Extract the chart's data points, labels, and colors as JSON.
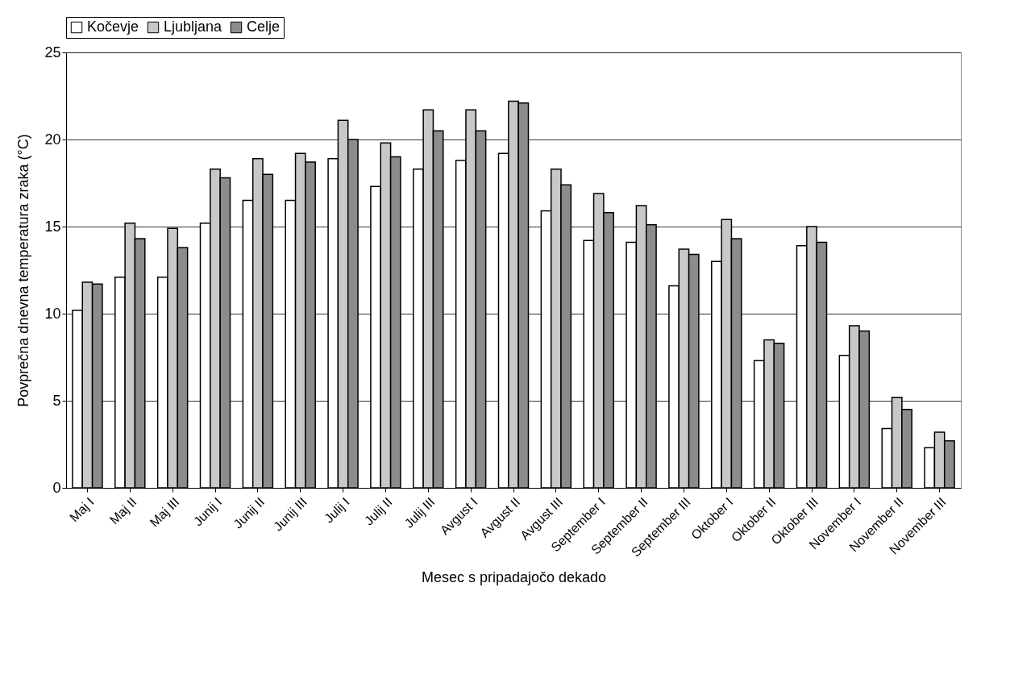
{
  "chart_data": {
    "type": "bar",
    "xlabel": "Mesec s pripadajočo dekado",
    "ylabel": "Povprečna dnevna temperatura zraka (°C)",
    "categories": [
      "Maj I",
      "Maj II",
      "Maj III",
      "Junij I",
      "Junij II",
      "Junij III",
      "Julij I",
      "Julij II",
      "Julij III",
      "Avgust I",
      "Avgust II",
      "Avgust III",
      "September I",
      "September II",
      "September III",
      "Oktober I",
      "Oktober II",
      "Oktober III",
      "November I",
      "November II",
      "November III"
    ],
    "series": [
      {
        "name": "Kočevje",
        "color": "#ffffff",
        "values": [
          10.2,
          12.1,
          12.1,
          15.2,
          16.5,
          16.5,
          18.9,
          17.3,
          18.3,
          18.8,
          19.2,
          15.9,
          14.2,
          14.1,
          11.6,
          13.0,
          7.3,
          13.9,
          7.6,
          3.4,
          2.3
        ]
      },
      {
        "name": "Ljubljana",
        "color": "#c8c8c8",
        "values": [
          11.8,
          15.2,
          14.9,
          18.3,
          18.9,
          19.2,
          21.1,
          19.8,
          21.7,
          21.7,
          22.2,
          18.3,
          16.9,
          16.2,
          13.7,
          15.4,
          8.5,
          15.0,
          9.3,
          5.2,
          3.2
        ]
      },
      {
        "name": "Celje",
        "color": "#8c8c8c",
        "values": [
          11.7,
          14.3,
          13.8,
          17.8,
          18.0,
          18.7,
          20.0,
          19.0,
          20.5,
          20.5,
          22.1,
          17.4,
          15.8,
          15.1,
          13.4,
          14.3,
          8.3,
          14.1,
          9.0,
          4.5,
          2.7
        ]
      }
    ],
    "ylim": [
      0,
      25
    ],
    "yticks": [
      0,
      5,
      10,
      15,
      20,
      25
    ],
    "grid": "y",
    "legend": "top"
  }
}
